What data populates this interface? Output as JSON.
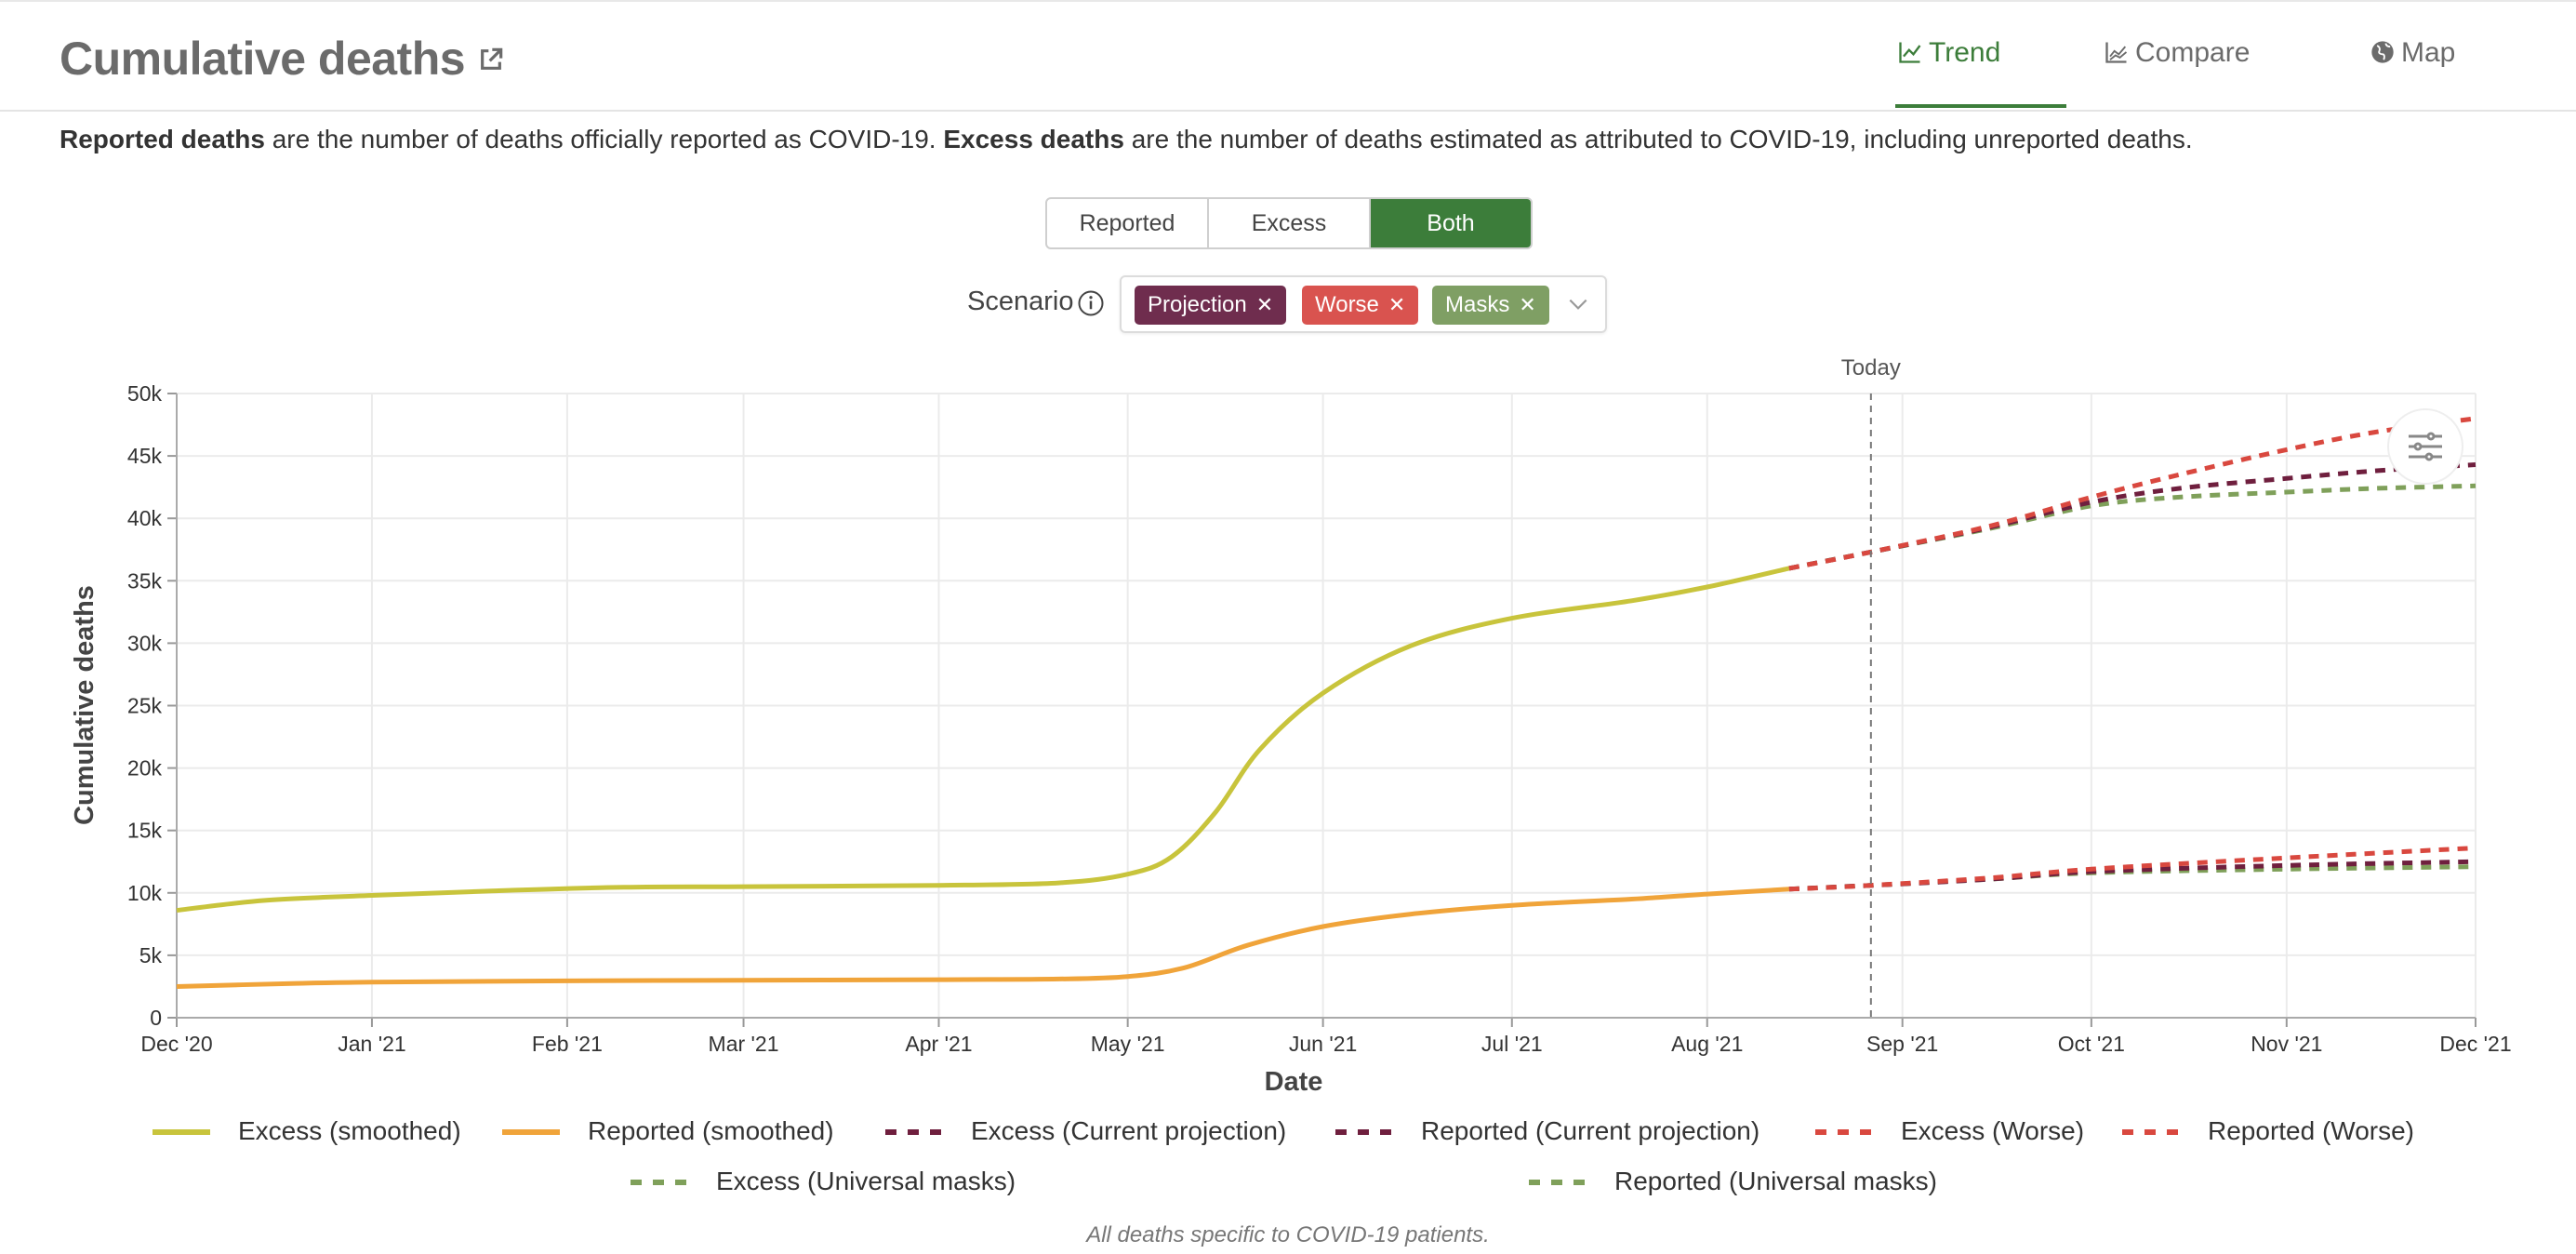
{
  "header": {
    "title": "Cumulative deaths",
    "tabs": [
      {
        "label": "Trend",
        "active": true
      },
      {
        "label": "Compare",
        "active": false
      },
      {
        "label": "Map",
        "active": false
      }
    ]
  },
  "description": {
    "reported_term": "Reported deaths",
    "reported_text": " are the number of deaths officially reported as COVID-19. ",
    "excess_term": "Excess deaths",
    "excess_text": " are the number of deaths estimated as attributed to COVID-19, including unreported deaths."
  },
  "toggle": {
    "options": [
      "Reported",
      "Excess",
      "Both"
    ],
    "selected": "Both"
  },
  "scenario": {
    "label": "Scenario",
    "chips": [
      {
        "label": "Projection",
        "color": "#6f2d4e"
      },
      {
        "label": "Worse",
        "color": "#d9534f"
      },
      {
        "label": "Masks",
        "color": "#7f9f64"
      }
    ]
  },
  "footnote": "All deaths specific to COVID-19 patients.",
  "chart_data": {
    "type": "line",
    "xlabel": "Date",
    "ylabel": "Cumulative deaths",
    "today_label": "Today",
    "today": "2021-08-27",
    "xlim": [
      "2020-12-01",
      "2021-12-01"
    ],
    "ylim": [
      0,
      50000
    ],
    "x_ticks": [
      "2020-12-01",
      "2021-01-01",
      "2021-02-01",
      "2021-03-01",
      "2021-04-01",
      "2021-05-01",
      "2021-06-01",
      "2021-07-01",
      "2021-08-01",
      "2021-09-01",
      "2021-10-01",
      "2021-11-01",
      "2021-12-01"
    ],
    "x_tick_labels": [
      "Dec '20",
      "Jan '21",
      "Feb '21",
      "Mar '21",
      "Apr '21",
      "May '21",
      "Jun '21",
      "Jul '21",
      "Aug '21",
      "Sep '21",
      "Oct '21",
      "Nov '21",
      "Dec '21"
    ],
    "y_ticks": [
      0,
      5000,
      10000,
      15000,
      20000,
      25000,
      30000,
      35000,
      40000,
      45000,
      50000
    ],
    "y_tick_labels": [
      "0",
      "5k",
      "10k",
      "15k",
      "20k",
      "25k",
      "30k",
      "35k",
      "40k",
      "45k",
      "50k"
    ],
    "grid": true,
    "legend_position": "bottom",
    "colors": {
      "excess": "#c8c43c",
      "reported": "#f0a43a",
      "projection": "#6f1f3e",
      "worse": "#d9483f",
      "masks": "#7fa05a"
    },
    "series": [
      {
        "name": "Excess (smoothed)",
        "color": "#c8c43c",
        "style": "solid",
        "x": [
          "2020-12-01",
          "2020-12-15",
          "2021-01-01",
          "2021-01-20",
          "2021-02-10",
          "2021-03-01",
          "2021-04-01",
          "2021-04-20",
          "2021-05-01",
          "2021-05-08",
          "2021-05-15",
          "2021-05-22",
          "2021-06-01",
          "2021-06-15",
          "2021-07-01",
          "2021-07-20",
          "2021-08-01",
          "2021-08-14"
        ],
        "y": [
          8600,
          9400,
          9800,
          10150,
          10450,
          10500,
          10600,
          10800,
          11500,
          12900,
          16500,
          21500,
          26000,
          29800,
          32000,
          33400,
          34500,
          36000
        ]
      },
      {
        "name": "Reported (smoothed)",
        "color": "#f0a43a",
        "style": "solid",
        "x": [
          "2020-12-01",
          "2020-12-20",
          "2021-01-01",
          "2021-02-01",
          "2021-03-01",
          "2021-04-01",
          "2021-04-20",
          "2021-05-01",
          "2021-05-10",
          "2021-05-20",
          "2021-06-01",
          "2021-06-15",
          "2021-07-01",
          "2021-07-20",
          "2021-08-01",
          "2021-08-14"
        ],
        "y": [
          2500,
          2750,
          2850,
          2950,
          3000,
          3050,
          3100,
          3300,
          4000,
          5800,
          7300,
          8300,
          9000,
          9500,
          9900,
          10300
        ]
      },
      {
        "name": "Excess (Current projection)",
        "color": "#6f1f3e",
        "style": "dashed",
        "x": [
          "2021-08-14",
          "2021-08-27",
          "2021-09-15",
          "2021-10-01",
          "2021-10-15",
          "2021-11-01",
          "2021-11-15",
          "2021-12-01"
        ],
        "y": [
          36000,
          37300,
          39300,
          41300,
          42400,
          43200,
          43800,
          44300
        ]
      },
      {
        "name": "Reported (Current projection)",
        "color": "#6f1f3e",
        "style": "dashed",
        "x": [
          "2021-08-14",
          "2021-08-27",
          "2021-09-15",
          "2021-10-01",
          "2021-11-01",
          "2021-12-01"
        ],
        "y": [
          10300,
          10600,
          11100,
          11700,
          12200,
          12500
        ]
      },
      {
        "name": "Excess (Worse)",
        "color": "#d9483f",
        "style": "dashed",
        "x": [
          "2021-08-14",
          "2021-08-27",
          "2021-09-15",
          "2021-10-01",
          "2021-10-15",
          "2021-11-01",
          "2021-11-15",
          "2021-12-01"
        ],
        "y": [
          36000,
          37300,
          39400,
          41700,
          43500,
          45500,
          46900,
          48000
        ]
      },
      {
        "name": "Reported (Worse)",
        "color": "#d9483f",
        "style": "dashed",
        "x": [
          "2021-08-14",
          "2021-08-27",
          "2021-09-15",
          "2021-10-01",
          "2021-11-01",
          "2021-12-01"
        ],
        "y": [
          10300,
          10600,
          11200,
          11900,
          12800,
          13600
        ]
      },
      {
        "name": "Excess (Universal masks)",
        "color": "#7fa05a",
        "style": "dashed",
        "x": [
          "2021-08-14",
          "2021-08-27",
          "2021-09-15",
          "2021-10-01",
          "2021-10-15",
          "2021-11-01",
          "2021-11-15",
          "2021-12-01"
        ],
        "y": [
          36000,
          37300,
          39200,
          41000,
          41700,
          42100,
          42400,
          42600
        ]
      },
      {
        "name": "Reported (Universal masks)",
        "color": "#7fa05a",
        "style": "dashed",
        "x": [
          "2021-08-14",
          "2021-08-27",
          "2021-09-15",
          "2021-10-01",
          "2021-11-01",
          "2021-12-01"
        ],
        "y": [
          10300,
          10600,
          11100,
          11600,
          11900,
          12100
        ]
      }
    ]
  }
}
